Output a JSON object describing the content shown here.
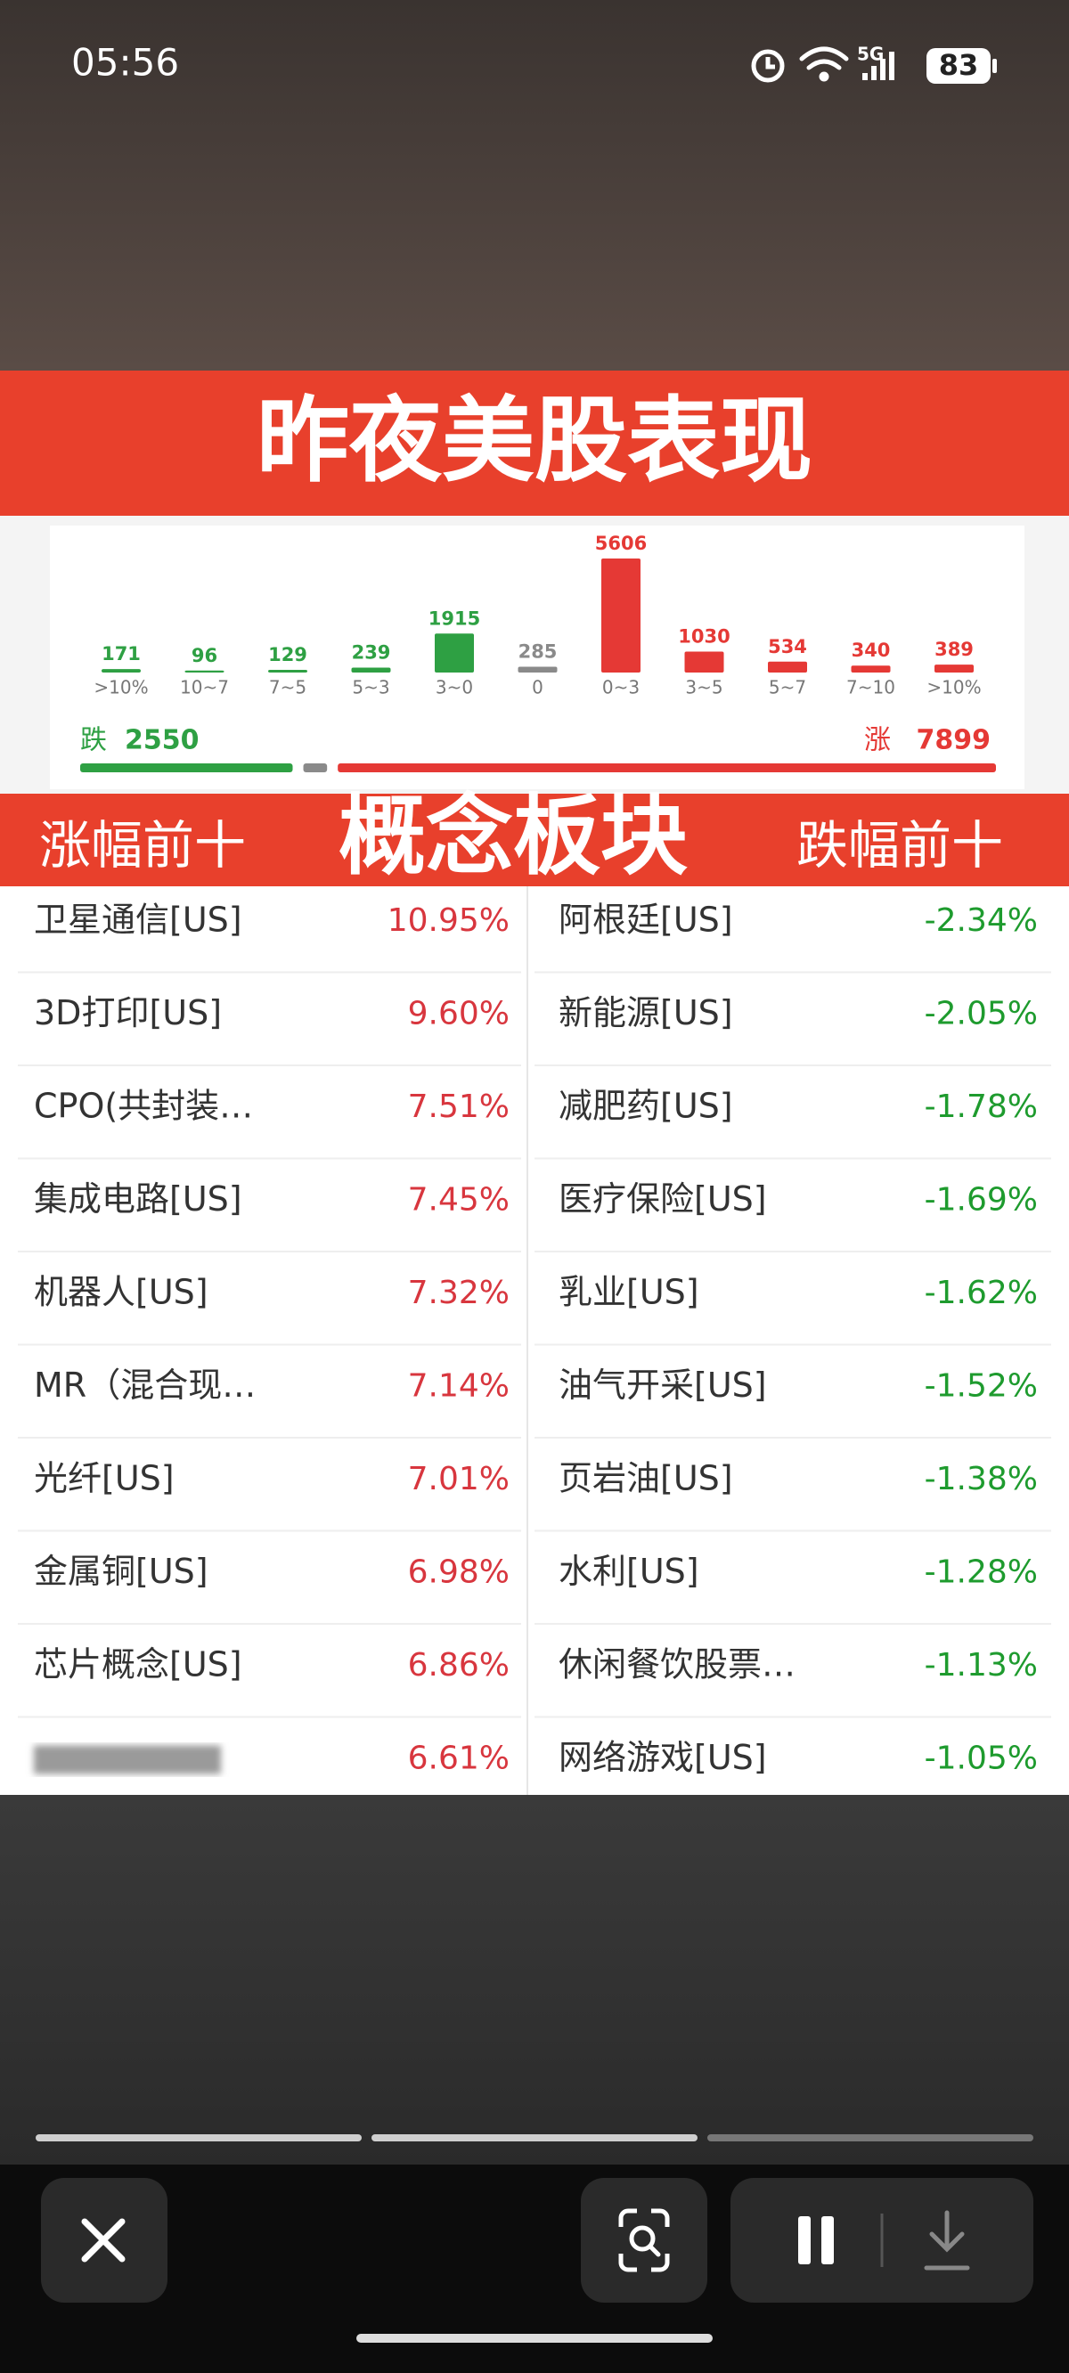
{
  "status_bar": {
    "time": "05:56",
    "network": "5G",
    "battery": "83"
  },
  "header": {
    "title": "昨夜美股表现"
  },
  "distribution": {
    "categories": [
      ">10%",
      "10~7",
      "7~5",
      "5~3",
      "3~0",
      "0",
      "0~3",
      "3~5",
      "5~7",
      "7~10",
      ">10%"
    ],
    "values": [
      171,
      96,
      129,
      239,
      1915,
      285,
      5606,
      1030,
      534,
      340,
      389
    ],
    "colors": [
      "#2ea043",
      "#2ea043",
      "#2ea043",
      "#2ea043",
      "#2ea043",
      "#8a8a8a",
      "#e53935",
      "#e53935",
      "#e53935",
      "#e53935",
      "#e53935"
    ],
    "down_label": "跌",
    "down_total": 2550,
    "up_label": "涨",
    "up_total": 7899
  },
  "section": {
    "left_title": "涨幅前十",
    "center_title": "概念板块",
    "right_title": "跌幅前十"
  },
  "table": {
    "gainers": [
      {
        "name": "卫星通信[US]",
        "change": "10.95%"
      },
      {
        "name": "3D打印[US]",
        "change": "9.60%"
      },
      {
        "name": "CPO(共封装…",
        "change": "7.51%"
      },
      {
        "name": "集成电路[US]",
        "change": "7.45%"
      },
      {
        "name": "机器人[US]",
        "change": "7.32%"
      },
      {
        "name": "MR（混合现…",
        "change": "7.14%"
      },
      {
        "name": "光纤[US]",
        "change": "7.01%"
      },
      {
        "name": "金属铜[US]",
        "change": "6.98%"
      },
      {
        "name": "芯片概念[US]",
        "change": "6.86%"
      },
      {
        "name": null,
        "change": "6.61%"
      }
    ],
    "losers": [
      {
        "name": "阿根廷[US]",
        "change": "-2.34%"
      },
      {
        "name": "新能源[US]",
        "change": "-2.05%"
      },
      {
        "name": "减肥药[US]",
        "change": "-1.78%"
      },
      {
        "name": "医疗保险[US]",
        "change": "-1.69%"
      },
      {
        "name": "乳业[US]",
        "change": "-1.62%"
      },
      {
        "name": "油气开采[US]",
        "change": "-1.52%"
      },
      {
        "name": "页岩油[US]",
        "change": "-1.38%"
      },
      {
        "name": "水利[US]",
        "change": "-1.28%"
      },
      {
        "name": "休闲餐饮股票…",
        "change": "-1.13%"
      },
      {
        "name": "网络游戏[US]",
        "change": "-1.05%"
      }
    ]
  }
}
